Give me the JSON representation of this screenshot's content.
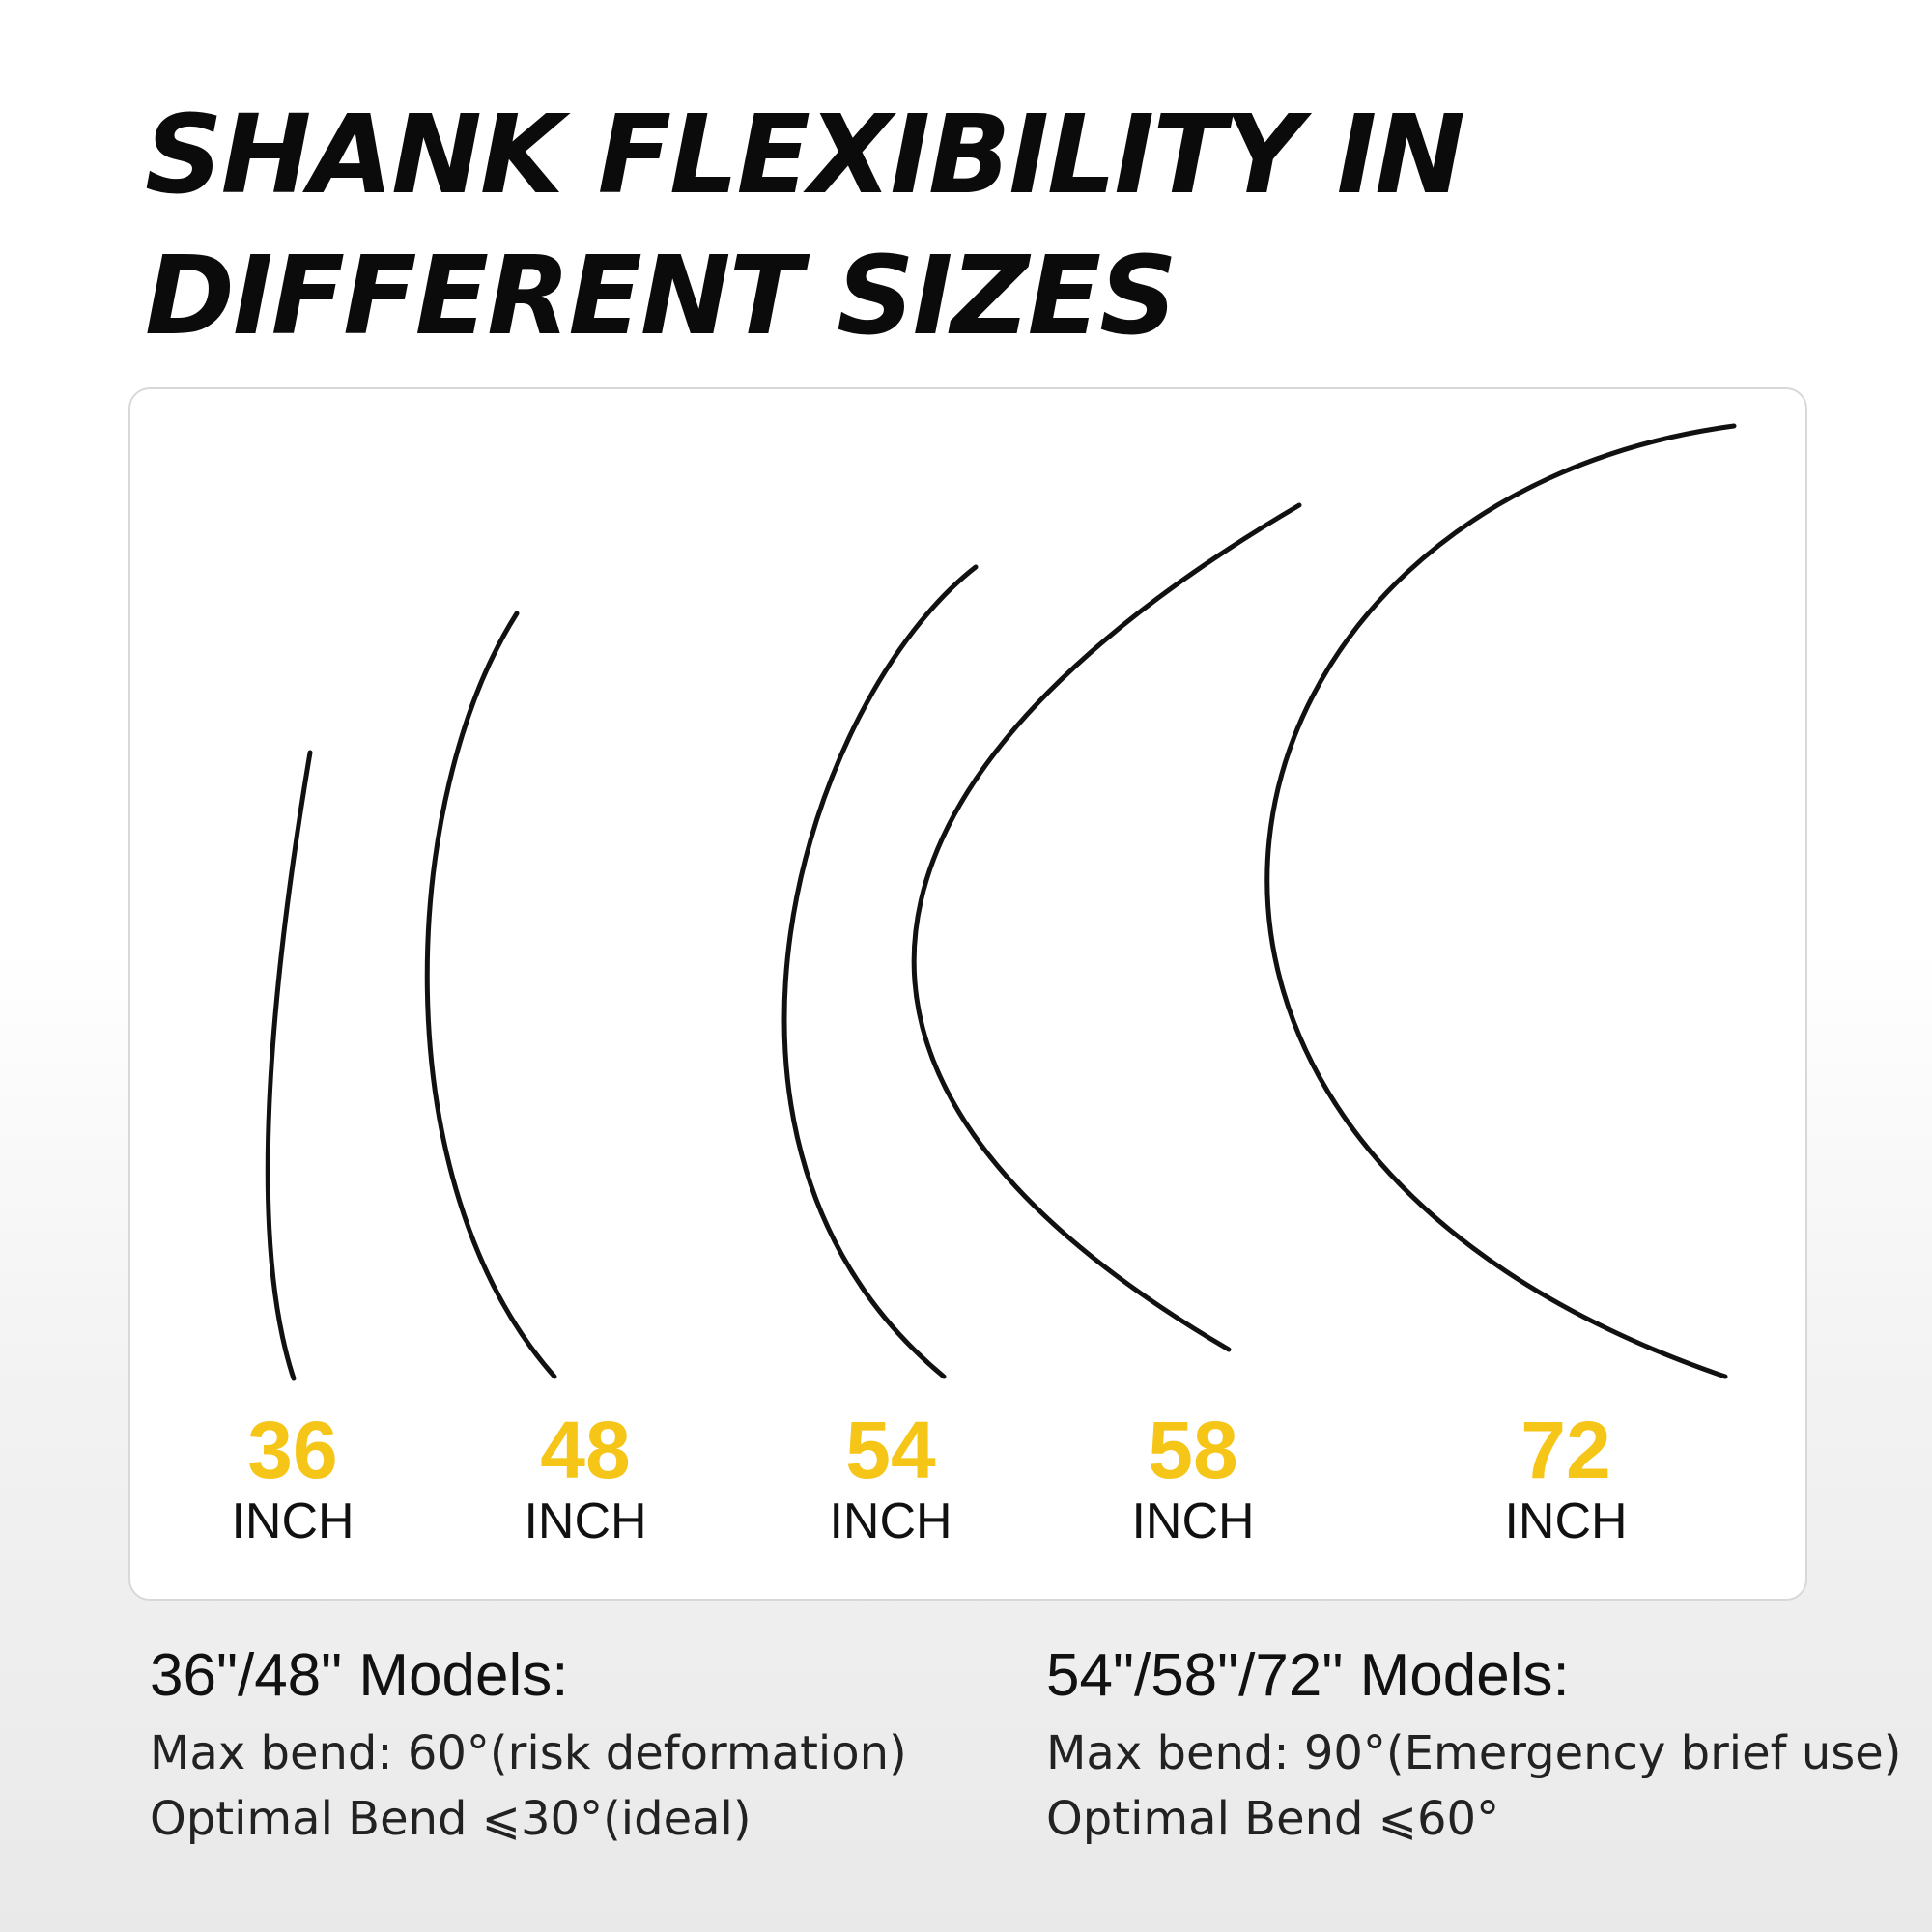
{
  "title_lines": [
    "SHANK FLEXIBILITY IN",
    "DIFFERENT SIZES"
  ],
  "sizes": [
    {
      "value": "36",
      "unit": "INCH"
    },
    {
      "value": "48",
      "unit": "INCH"
    },
    {
      "value": "54",
      "unit": "INCH"
    },
    {
      "value": "58",
      "unit": "INCH"
    },
    {
      "value": "72",
      "unit": "INCH"
    }
  ],
  "specs": [
    {
      "heading": "36\"/48\" Models:",
      "max_bend": "Max bend: 60°(risk deformation)",
      "optimal_bend": "Optimal Bend ⩽30°(ideal)"
    },
    {
      "heading": "54\"/58\"/72\" Models:",
      "max_bend": "Max bend: 90°(Emergency brief use)",
      "optimal_bend": "Optimal Bend ⩽60°"
    }
  ],
  "colors": {
    "accent": "#f5c518",
    "stroke": "#111111",
    "text": "#111111"
  }
}
